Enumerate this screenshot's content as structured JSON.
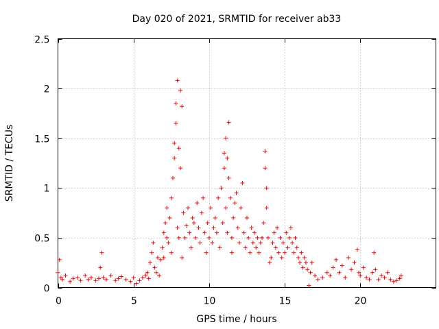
{
  "chart_data": {
    "type": "scatter",
    "title": "Day 020 of 2021, SRMTID for receiver ab33",
    "xlabel": "GPS time / hours",
    "ylabel": "SRMTID / TECUs",
    "xlim": [
      0,
      25
    ],
    "ylim": [
      0,
      2.5
    ],
    "xticks": [
      0,
      5,
      10,
      15,
      20
    ],
    "xtick_labels": [
      "0",
      "5",
      "10",
      "15",
      "20"
    ],
    "yticks": [
      0,
      0.5,
      1,
      1.5,
      2,
      2.5
    ],
    "ytick_labels": [
      "0",
      "0.5",
      "1",
      "1.5",
      "2",
      "2.5"
    ],
    "grid": true,
    "marker": "+",
    "series": [
      {
        "name": "SRMTID",
        "color": "#ff0000",
        "x": [
          0.0,
          0.1,
          0.2,
          0.3,
          0.5,
          0.8,
          1.0,
          1.3,
          1.5,
          1.8,
          2.0,
          2.2,
          2.5,
          2.7,
          2.8,
          2.9,
          3.0,
          3.2,
          3.5,
          3.8,
          4.0,
          4.2,
          4.5,
          4.8,
          5.0,
          5.2,
          5.4,
          5.6,
          5.8,
          5.9,
          6.0,
          6.1,
          6.2,
          6.3,
          6.4,
          6.5,
          6.6,
          6.7,
          6.8,
          6.9,
          7.0,
          7.0,
          7.1,
          7.2,
          7.2,
          7.3,
          7.4,
          7.5,
          7.5,
          7.6,
          7.7,
          7.7,
          7.8,
          7.8,
          7.9,
          7.9,
          8.0,
          8.0,
          8.1,
          8.1,
          8.2,
          8.2,
          8.3,
          8.4,
          8.5,
          8.6,
          8.7,
          8.8,
          8.9,
          9.0,
          9.1,
          9.2,
          9.3,
          9.4,
          9.5,
          9.6,
          9.7,
          9.8,
          9.9,
          10.0,
          10.1,
          10.2,
          10.3,
          10.4,
          10.5,
          10.6,
          10.7,
          10.8,
          10.9,
          11.0,
          11.0,
          11.1,
          11.1,
          11.2,
          11.2,
          11.3,
          11.3,
          11.4,
          11.5,
          11.5,
          11.6,
          11.7,
          11.8,
          11.9,
          12.0,
          12.1,
          12.2,
          12.3,
          12.4,
          12.5,
          12.6,
          12.7,
          12.8,
          12.9,
          13.0,
          13.1,
          13.2,
          13.3,
          13.4,
          13.5,
          13.6,
          13.7,
          13.7,
          13.8,
          13.8,
          13.9,
          14.0,
          14.1,
          14.2,
          14.3,
          14.4,
          14.5,
          14.6,
          14.7,
          14.8,
          14.9,
          15.0,
          15.1,
          15.2,
          15.3,
          15.4,
          15.5,
          15.6,
          15.7,
          15.8,
          15.9,
          16.0,
          16.1,
          16.2,
          16.3,
          16.4,
          16.5,
          16.6,
          16.7,
          16.8,
          17.0,
          17.2,
          17.5,
          17.8,
          18.0,
          18.2,
          18.4,
          18.6,
          18.8,
          19.0,
          19.2,
          19.4,
          19.6,
          19.8,
          19.9,
          20.0,
          20.2,
          20.4,
          20.6,
          20.8,
          20.9,
          21.0,
          21.2,
          21.4,
          21.6,
          21.8,
          22.0,
          22.2,
          22.4,
          22.6,
          22.7
        ],
        "y": [
          0.15,
          0.28,
          0.1,
          0.08,
          0.12,
          0.06,
          0.09,
          0.1,
          0.07,
          0.12,
          0.08,
          0.1,
          0.07,
          0.09,
          0.2,
          0.35,
          0.1,
          0.08,
          0.12,
          0.07,
          0.09,
          0.11,
          0.08,
          0.06,
          0.1,
          0.04,
          0.07,
          0.1,
          0.12,
          0.15,
          0.09,
          0.25,
          0.35,
          0.45,
          0.2,
          0.15,
          0.3,
          0.12,
          0.28,
          0.4,
          0.55,
          0.3,
          0.65,
          0.5,
          0.8,
          0.45,
          0.7,
          0.9,
          0.35,
          1.1,
          1.3,
          1.45,
          1.65,
          1.85,
          2.08,
          0.6,
          0.5,
          1.4,
          1.98,
          1.2,
          0.3,
          1.82,
          0.75,
          0.5,
          0.62,
          0.8,
          0.55,
          0.4,
          0.7,
          0.65,
          0.5,
          0.85,
          0.6,
          0.45,
          0.75,
          0.9,
          0.55,
          0.35,
          0.65,
          0.5,
          0.8,
          0.45,
          0.6,
          0.7,
          0.55,
          0.9,
          0.4,
          1.0,
          0.65,
          1.2,
          1.35,
          1.5,
          0.8,
          1.3,
          0.55,
          1.66,
          1.1,
          0.9,
          0.5,
          0.35,
          0.7,
          0.85,
          0.95,
          0.6,
          0.45,
          0.8,
          1.05,
          0.55,
          0.4,
          0.7,
          0.5,
          0.35,
          0.6,
          0.45,
          0.55,
          0.4,
          0.5,
          0.35,
          0.45,
          0.5,
          0.65,
          1.2,
          1.37,
          0.8,
          1.0,
          0.5,
          0.25,
          0.3,
          0.45,
          0.55,
          0.4,
          0.6,
          0.35,
          0.5,
          0.3,
          0.45,
          0.35,
          0.55,
          0.4,
          0.5,
          0.6,
          0.45,
          0.35,
          0.5,
          0.4,
          0.3,
          0.25,
          0.35,
          0.2,
          0.3,
          0.25,
          0.18,
          0.02,
          0.15,
          0.25,
          0.12,
          0.08,
          0.1,
          0.15,
          0.12,
          0.2,
          0.28,
          0.15,
          0.22,
          0.1,
          0.3,
          0.18,
          0.25,
          0.38,
          0.15,
          0.12,
          0.2,
          0.1,
          0.08,
          0.15,
          0.35,
          0.18,
          0.08,
          0.12,
          0.1,
          0.15,
          0.08,
          0.06,
          0.07,
          0.09,
          0.12
        ]
      }
    ]
  }
}
